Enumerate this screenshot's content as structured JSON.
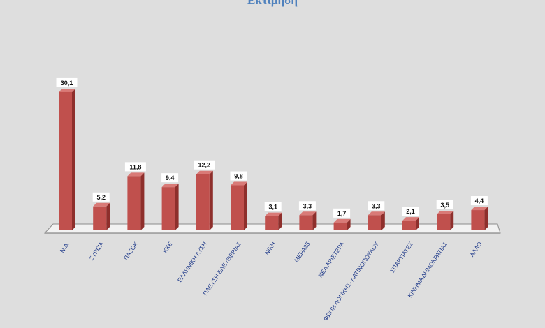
{
  "chart_data": {
    "type": "bar",
    "title": "Εκτίμηση",
    "categories": [
      "Ν.Δ.",
      "ΣΥΡΙΖΑ",
      "ΠΑΣΟΚ",
      "ΚΚΕ",
      "ΕΛΛΗΝΙΚΗ ΛΥΣΗ",
      "ΠΛΕΥΣΗ ΕΛΕΥΘΕΡΙΑΣ",
      "ΝΙΚΗ",
      "ΜΕΡΑ25",
      "ΝΕΑ ΑΡΙΣΤΕΡΑ",
      "ΦΩΝΗ ΛΟΓΙΚΗΣ- ΛΑΤΙΝΟΠΟΥΛΟΥ",
      "ΣΠΑΡΤΙΑΤΕΣ",
      "ΚΙΝΗΜΑ ΔΗΜΟΚΡΑΤΙΑΣ",
      "ΑΛΛΟ"
    ],
    "values": [
      30.1,
      5.2,
      11.8,
      9.4,
      12.2,
      9.8,
      3.1,
      3.3,
      1.7,
      3.3,
      2.1,
      3.5,
      4.4
    ],
    "value_labels": [
      "30,1",
      "5,2",
      "11,8",
      "9,4",
      "12,2",
      "9,8",
      "3,1",
      "3,3",
      "1,7",
      "3,3",
      "2,1",
      "3,5",
      "4,4"
    ],
    "bar_color": "#c0504d",
    "title_color": "#4f81bd",
    "xlabel": "",
    "ylabel": "",
    "grid": false,
    "legend": "none"
  }
}
